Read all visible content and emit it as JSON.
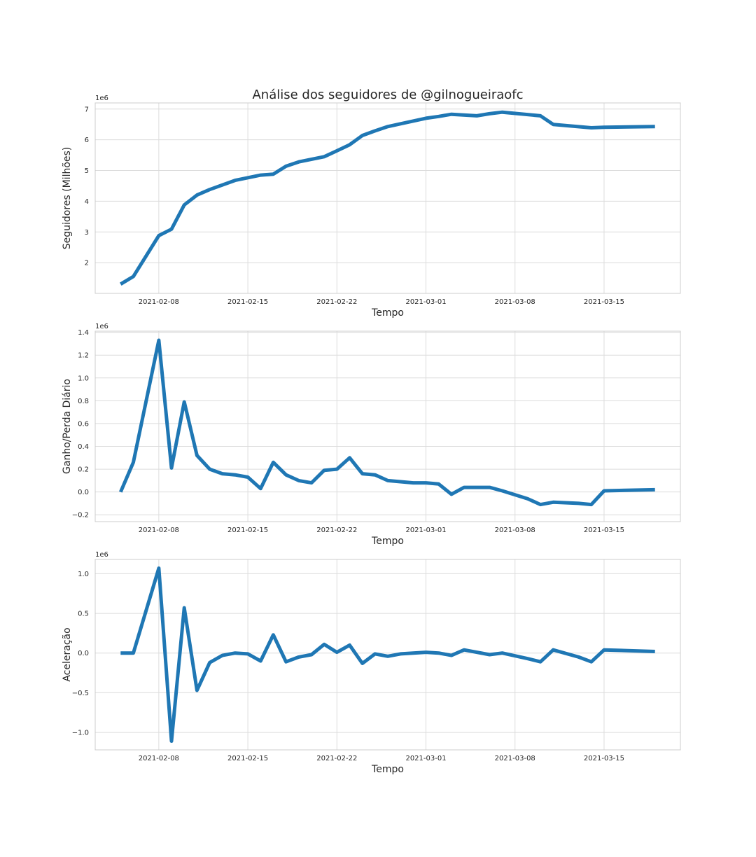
{
  "chart_data": [
    {
      "type": "line",
      "title": "Análise dos seguidores de @gilnogueiraofc",
      "xlabel": "Tempo",
      "ylabel": "Seguidores (Milhões)",
      "y_offset_label": "1e6",
      "ylim": [
        1.0,
        7.2
      ],
      "yticks": [
        2,
        3,
        4,
        5,
        6,
        7
      ],
      "ytick_labels": [
        "2",
        "3",
        "4",
        "5",
        "6",
        "7"
      ],
      "xlim": [
        "2021-02-03",
        "2021-03-21"
      ],
      "xticks": [
        "2021-02-08",
        "2021-02-15",
        "2021-02-22",
        "2021-03-01",
        "2021-03-08",
        "2021-03-15"
      ],
      "grid": true,
      "series": [
        {
          "color": "#1f77b4",
          "x": [
            "2021-02-05",
            "2021-02-06",
            "2021-02-08",
            "2021-02-09",
            "2021-02-10",
            "2021-02-11",
            "2021-02-12",
            "2021-02-14",
            "2021-02-16",
            "2021-02-17",
            "2021-02-18",
            "2021-02-19",
            "2021-02-21",
            "2021-02-22",
            "2021-02-23",
            "2021-02-24",
            "2021-02-25",
            "2021-02-26",
            "2021-02-27",
            "2021-03-01",
            "2021-03-02",
            "2021-03-03",
            "2021-03-05",
            "2021-03-06",
            "2021-03-07",
            "2021-03-10",
            "2021-03-11",
            "2021-03-14",
            "2021-03-15",
            "2021-03-19"
          ],
          "y": [
            1.3,
            1.55,
            2.88,
            3.09,
            3.88,
            4.2,
            4.38,
            4.68,
            4.85,
            4.88,
            5.14,
            5.28,
            5.45,
            5.64,
            5.84,
            6.14,
            6.29,
            6.43,
            6.52,
            6.7,
            6.76,
            6.83,
            6.78,
            6.85,
            6.9,
            6.78,
            6.5,
            6.39,
            6.41,
            6.43
          ]
        }
      ]
    },
    {
      "type": "line",
      "xlabel": "Tempo",
      "ylabel": "Ganho/Perda Diário",
      "y_offset_label": "1e6",
      "ylim": [
        -0.26,
        1.41
      ],
      "yticks": [
        -0.2,
        0.0,
        0.2,
        0.4,
        0.6,
        0.8,
        1.0,
        1.2,
        1.4
      ],
      "ytick_labels": [
        "−0.2",
        "0.0",
        "0.2",
        "0.4",
        "0.6",
        "0.8",
        "1.0",
        "1.2",
        "1.4"
      ],
      "xlim": [
        "2021-02-03",
        "2021-03-21"
      ],
      "xticks": [
        "2021-02-08",
        "2021-02-15",
        "2021-02-22",
        "2021-03-01",
        "2021-03-08",
        "2021-03-15"
      ],
      "grid": true,
      "series": [
        {
          "color": "#1f77b4",
          "x": [
            "2021-02-05",
            "2021-02-06",
            "2021-02-08",
            "2021-02-09",
            "2021-02-10",
            "2021-02-11",
            "2021-02-12",
            "2021-02-13",
            "2021-02-14",
            "2021-02-15",
            "2021-02-16",
            "2021-02-17",
            "2021-02-18",
            "2021-02-19",
            "2021-02-20",
            "2021-02-21",
            "2021-02-22",
            "2021-02-23",
            "2021-02-24",
            "2021-02-25",
            "2021-02-26",
            "2021-02-27",
            "2021-02-28",
            "2021-03-01",
            "2021-03-02",
            "2021-03-03",
            "2021-03-04",
            "2021-03-06",
            "2021-03-07",
            "2021-03-09",
            "2021-03-10",
            "2021-03-11",
            "2021-03-13",
            "2021-03-14",
            "2021-03-15",
            "2021-03-19"
          ],
          "y": [
            0.0,
            0.26,
            1.33,
            0.21,
            0.79,
            0.32,
            0.2,
            0.16,
            0.15,
            0.13,
            0.03,
            0.26,
            0.15,
            0.1,
            0.08,
            0.19,
            0.2,
            0.3,
            0.16,
            0.15,
            0.1,
            0.09,
            0.08,
            0.08,
            0.07,
            -0.02,
            0.04,
            0.04,
            0.01,
            -0.06,
            -0.11,
            -0.09,
            -0.1,
            -0.11,
            0.01,
            0.02
          ]
        }
      ]
    },
    {
      "type": "line",
      "xlabel": "Tempo",
      "ylabel": "Aceleração",
      "y_offset_label": "1e6",
      "ylim": [
        -1.22,
        1.18
      ],
      "yticks": [
        -1.0,
        -0.5,
        0.0,
        0.5,
        1.0
      ],
      "ytick_labels": [
        "−1.0",
        "−0.5",
        "0.0",
        "0.5",
        "1.0"
      ],
      "xlim": [
        "2021-02-03",
        "2021-03-21"
      ],
      "xticks": [
        "2021-02-08",
        "2021-02-15",
        "2021-02-22",
        "2021-03-01",
        "2021-03-08",
        "2021-03-15"
      ],
      "grid": true,
      "series": [
        {
          "color": "#1f77b4",
          "x": [
            "2021-02-05",
            "2021-02-06",
            "2021-02-08",
            "2021-02-09",
            "2021-02-10",
            "2021-02-11",
            "2021-02-12",
            "2021-02-13",
            "2021-02-14",
            "2021-02-15",
            "2021-02-16",
            "2021-02-17",
            "2021-02-18",
            "2021-02-19",
            "2021-02-20",
            "2021-02-21",
            "2021-02-22",
            "2021-02-23",
            "2021-02-24",
            "2021-02-25",
            "2021-02-26",
            "2021-02-27",
            "2021-03-01",
            "2021-03-02",
            "2021-03-03",
            "2021-03-04",
            "2021-03-06",
            "2021-03-07",
            "2021-03-09",
            "2021-03-10",
            "2021-03-11",
            "2021-03-13",
            "2021-03-14",
            "2021-03-15",
            "2021-03-19"
          ],
          "y": [
            0.0,
            0.0,
            1.07,
            -1.11,
            0.57,
            -0.47,
            -0.12,
            -0.03,
            0.0,
            -0.01,
            -0.1,
            0.23,
            -0.11,
            -0.05,
            -0.02,
            0.11,
            0.01,
            0.1,
            -0.13,
            -0.01,
            -0.04,
            -0.01,
            0.01,
            0.0,
            -0.03,
            0.04,
            -0.02,
            0.0,
            -0.07,
            -0.11,
            0.04,
            -0.05,
            -0.11,
            0.04,
            0.02
          ]
        }
      ]
    }
  ]
}
